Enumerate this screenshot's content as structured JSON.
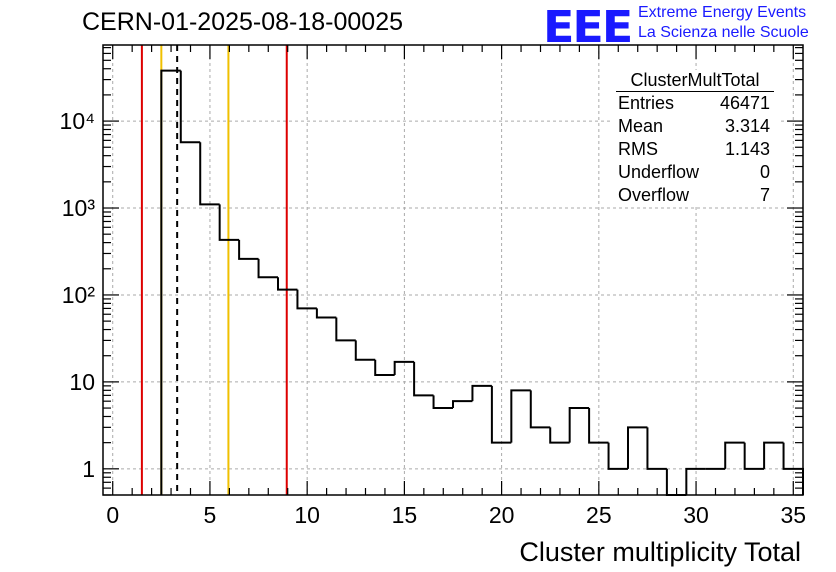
{
  "header": {
    "run_title": "CERN-01-2025-08-18-00025",
    "logo_text": "EEE",
    "logo_line1": "Extreme Energy Events",
    "logo_line2": "La Scienza nelle Scuole"
  },
  "stats_box": {
    "name": "ClusterMultTotal",
    "rows": [
      {
        "label": "Entries",
        "value": "46471"
      },
      {
        "label": "Mean",
        "value": "3.314"
      },
      {
        "label": "RMS",
        "value": "1.143"
      },
      {
        "label": "Underflow",
        "value": "0"
      },
      {
        "label": "Overflow",
        "value": "7"
      }
    ]
  },
  "chart_data": {
    "type": "bar",
    "histogram": true,
    "title": "CERN-01-2025-08-18-00025",
    "xlabel": "Cluster multiplicity Total",
    "ylabel": "",
    "xlim": [
      -0.5,
      35.5
    ],
    "ylim": [
      0.5,
      75000
    ],
    "yscale": "log",
    "bin_width": 1,
    "bin_low_edges": [
      2.5,
      3.5,
      4.5,
      5.5,
      6.5,
      7.5,
      8.5,
      9.5,
      10.5,
      11.5,
      12.5,
      13.5,
      14.5,
      15.5,
      16.5,
      17.5,
      18.5,
      19.5,
      20.5,
      21.5,
      22.5,
      23.5,
      24.5,
      25.5,
      26.5,
      27.5,
      28.5,
      29.5,
      30.5,
      31.5,
      32.5,
      33.5,
      34.5
    ],
    "values": [
      38000,
      5700,
      1100,
      430,
      260,
      160,
      115,
      70,
      55,
      30,
      18,
      12,
      17,
      7,
      5,
      6,
      9,
      2,
      8,
      3,
      2,
      5,
      2,
      1,
      3,
      1,
      0,
      1,
      1,
      2,
      1,
      2,
      1
    ],
    "x_ticks": [
      "0",
      "5",
      "10",
      "15",
      "20",
      "25",
      "30",
      "35"
    ],
    "y_ticks": [
      "1",
      "10",
      "10²",
      "10³",
      "10⁴"
    ],
    "grid": true,
    "colors": {
      "line": "#000000",
      "red": "#dd0000",
      "yellow": "#f0c000",
      "grid": "#aaaaaa"
    },
    "vertical_lines": [
      {
        "x": 1.5,
        "color": "red",
        "style": "solid"
      },
      {
        "x": 2.5,
        "color": "yellow",
        "style": "solid"
      },
      {
        "x": 3.314,
        "color": "black",
        "style": "dashed"
      },
      {
        "x": 5.95,
        "color": "yellow",
        "style": "solid"
      },
      {
        "x": 8.95,
        "color": "red",
        "style": "solid"
      }
    ]
  }
}
